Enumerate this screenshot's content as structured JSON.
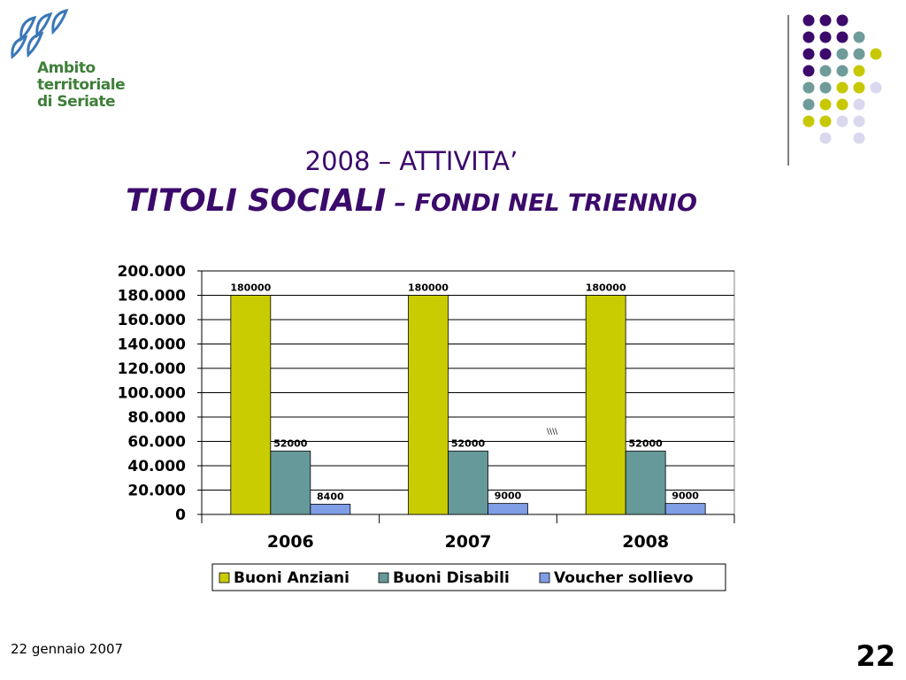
{
  "header": {
    "logo_lines": [
      "Ambito",
      "territoriale",
      "di Seriate"
    ],
    "title_line1": "2008 – ATTIVITA’",
    "title_line2_main": "TITOLI SOCIALI",
    "title_line2_sub": " – FONDI NEL TRIENNIO"
  },
  "colors": {
    "title": "#3b0a6b",
    "logo_green": "#3f7f3a",
    "logo_blue": "#3a78b8",
    "dot_purple": "#3b0a6b",
    "dot_teal": "#6f9c9a",
    "dot_yellow": "#c8c800",
    "dot_lilac": "#d9d8ee"
  },
  "chart_data": {
    "type": "bar",
    "categories": [
      "2006",
      "2007",
      "2008"
    ],
    "series": [
      {
        "name": "Buoni Anziani",
        "values": [
          180000,
          180000,
          180000
        ],
        "color": "#c9cc00",
        "labels": [
          "180000",
          "180000",
          "180000"
        ]
      },
      {
        "name": "Buoni Disabili",
        "values": [
          52000,
          52000,
          52000
        ],
        "color": "#669999",
        "labels": [
          "52000",
          "52000",
          "52000"
        ]
      },
      {
        "name": "Voucher sollievo",
        "values": [
          8400,
          9000,
          9000
        ],
        "color": "#7f9ee6",
        "labels": [
          "8400",
          "9000",
          "9000"
        ]
      }
    ],
    "ylim": [
      0,
      200000
    ],
    "yticks": [
      "200.000",
      "180.000",
      "160.000",
      "140.000",
      "120.000",
      "100.000",
      "80.000",
      "60.000",
      "40.000",
      "20.000",
      "0"
    ],
    "ytick_values": [
      200000,
      180000,
      160000,
      140000,
      120000,
      100000,
      80000,
      60000,
      40000,
      20000,
      0
    ],
    "grid": true,
    "legend_position": "bottom",
    "annotation": "\\\\\\\\"
  },
  "footer": {
    "date": "22 gennaio 2007",
    "page_number": "22"
  }
}
